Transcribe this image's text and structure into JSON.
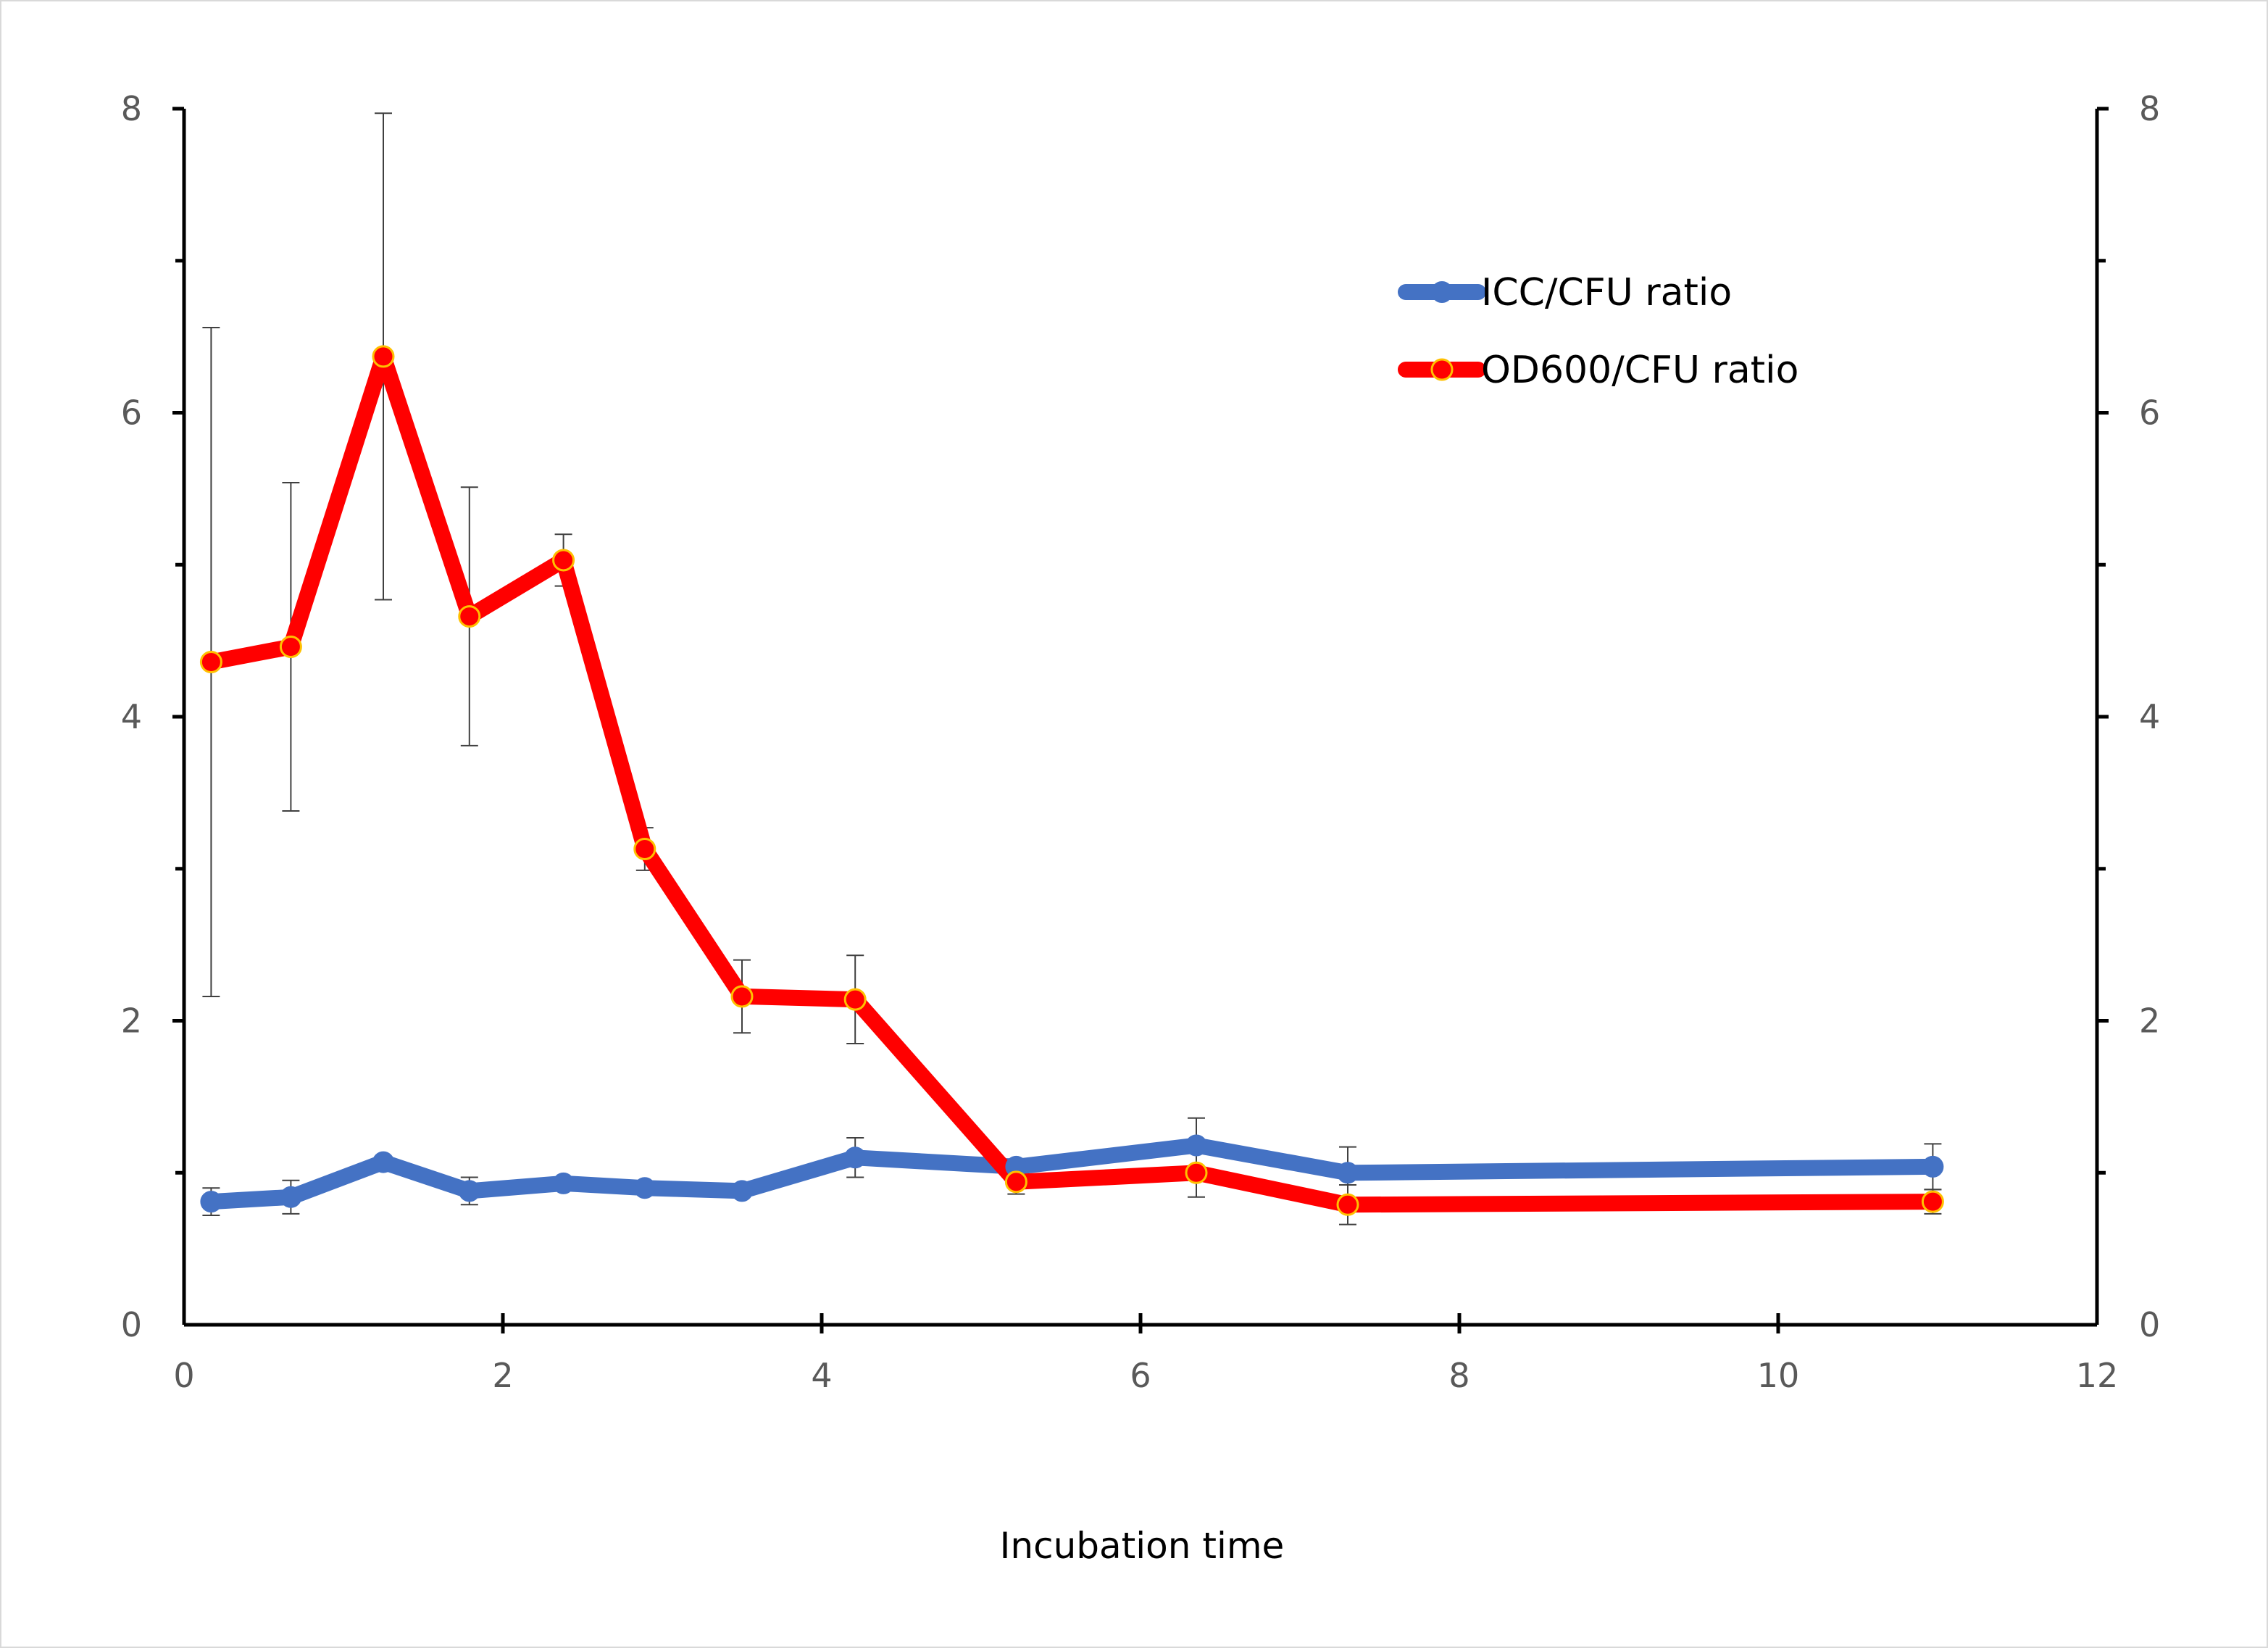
{
  "chart_data": {
    "type": "line",
    "title": "",
    "xlabel": "Incubation time",
    "ylabel": "",
    "y2label": "",
    "xlim": [
      0,
      12
    ],
    "ylim": [
      0,
      8
    ],
    "y2lim": [
      0,
      8
    ],
    "x_ticks": [
      0,
      2,
      4,
      6,
      8,
      10,
      12
    ],
    "y_ticks": [
      0,
      2,
      4,
      6,
      8
    ],
    "y2_ticks": [
      0,
      2,
      4,
      6,
      8
    ],
    "grid": false,
    "legend_position": "top-right",
    "series": [
      {
        "name": "ICC/CFU ratio",
        "color": "#4472c4",
        "marker_fill": "#4472c4",
        "points": [
          {
            "x": 0.17,
            "y": 0.81,
            "err": 0.09
          },
          {
            "x": 0.67,
            "y": 0.84,
            "err": 0.11
          },
          {
            "x": 1.25,
            "y": 1.07,
            "err": 0.03
          },
          {
            "x": 1.79,
            "y": 0.88,
            "err": 0.09
          },
          {
            "x": 2.38,
            "y": 0.93,
            "err": 0.03
          },
          {
            "x": 2.89,
            "y": 0.9,
            "err": 0.03
          },
          {
            "x": 3.5,
            "y": 0.88,
            "err": 0.03
          },
          {
            "x": 4.21,
            "y": 1.1,
            "err": 0.13
          },
          {
            "x": 5.22,
            "y": 1.04,
            "err": 0.05
          },
          {
            "x": 6.35,
            "y": 1.18,
            "err": 0.18
          },
          {
            "x": 7.3,
            "y": 1.0,
            "err": 0.17
          },
          {
            "x": 10.97,
            "y": 1.04,
            "err": 0.15
          }
        ]
      },
      {
        "name": "OD600/CFU ratio",
        "color": "#ff0000",
        "marker_fill": "#ff0000",
        "marker_edge": "#ffc000",
        "points": [
          {
            "x": 0.17,
            "y": 4.36,
            "err": 2.2
          },
          {
            "x": 0.67,
            "y": 4.46,
            "err": 1.08
          },
          {
            "x": 1.25,
            "y": 6.37,
            "err": 1.6
          },
          {
            "x": 1.79,
            "y": 4.66,
            "err": 0.85
          },
          {
            "x": 2.38,
            "y": 5.03,
            "err": 0.17
          },
          {
            "x": 2.89,
            "y": 3.13,
            "err": 0.14
          },
          {
            "x": 3.5,
            "y": 2.16,
            "err": 0.24
          },
          {
            "x": 4.21,
            "y": 2.14,
            "err": 0.29
          },
          {
            "x": 5.22,
            "y": 0.94,
            "err": 0.08
          },
          {
            "x": 6.35,
            "y": 1.0,
            "err": 0.16
          },
          {
            "x": 7.3,
            "y": 0.79,
            "err": 0.13
          },
          {
            "x": 10.97,
            "y": 0.81,
            "err": 0.08
          }
        ]
      }
    ]
  }
}
